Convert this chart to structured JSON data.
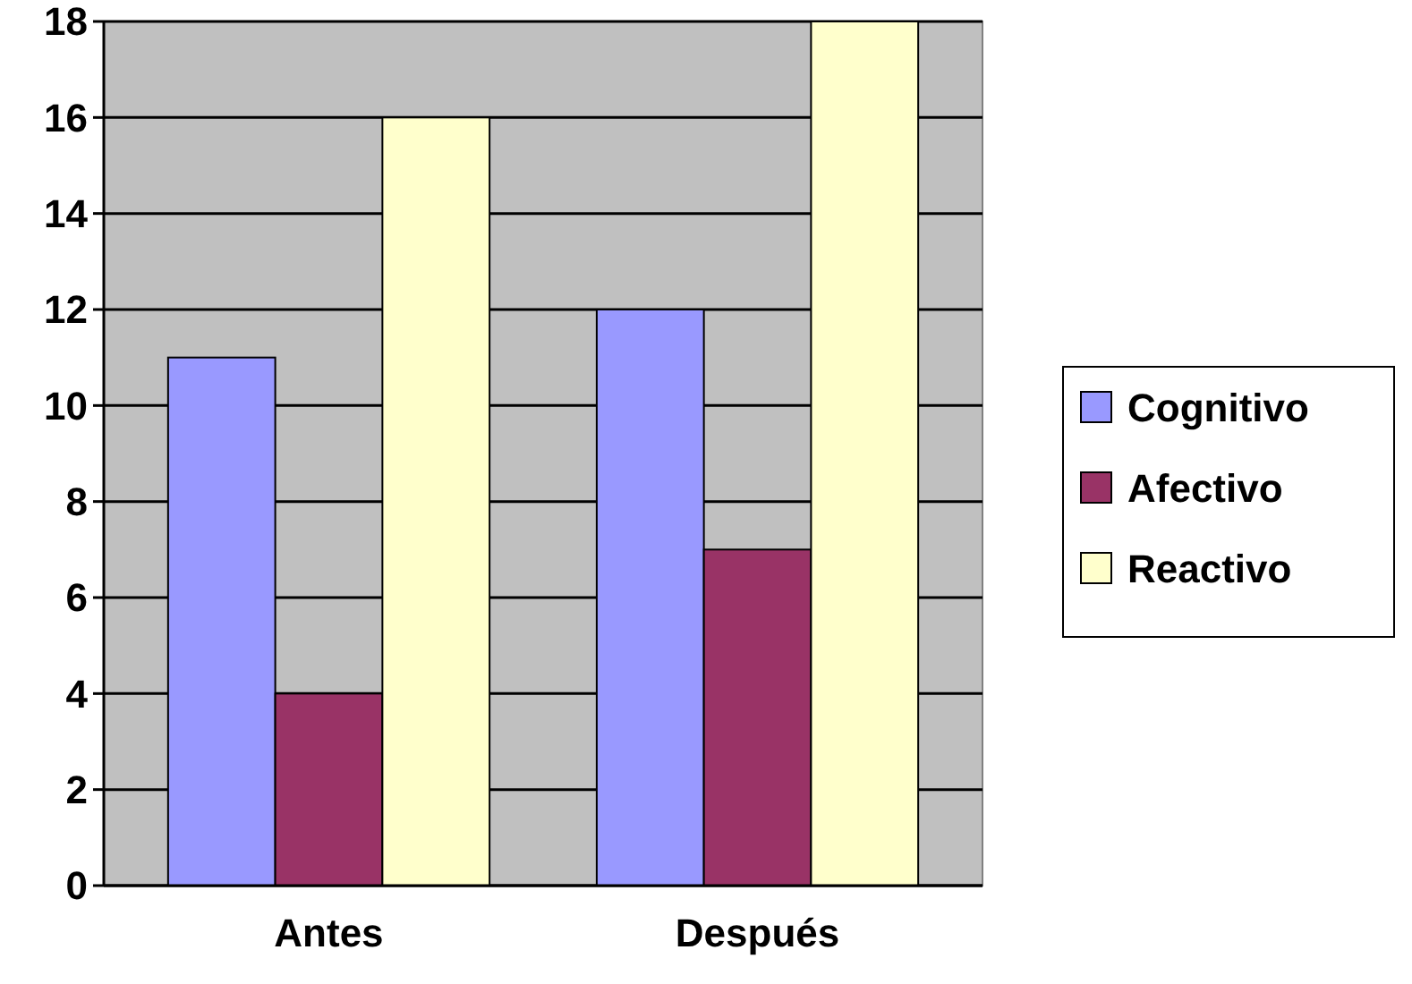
{
  "chart_data": {
    "type": "bar",
    "categories": [
      "Antes",
      "Después"
    ],
    "series": [
      {
        "name": "Cognitivo",
        "color": "#9999ff",
        "values": [
          11,
          12
        ]
      },
      {
        "name": "Afectivo",
        "color": "#993366",
        "values": [
          4,
          7
        ]
      },
      {
        "name": "Reactivo",
        "color": "#ffffcc",
        "values": [
          16,
          18
        ]
      }
    ],
    "ylim": [
      0,
      18
    ],
    "yticks": [
      0,
      2,
      4,
      6,
      8,
      10,
      12,
      14,
      16,
      18
    ],
    "grid": "y",
    "legend": "right"
  }
}
